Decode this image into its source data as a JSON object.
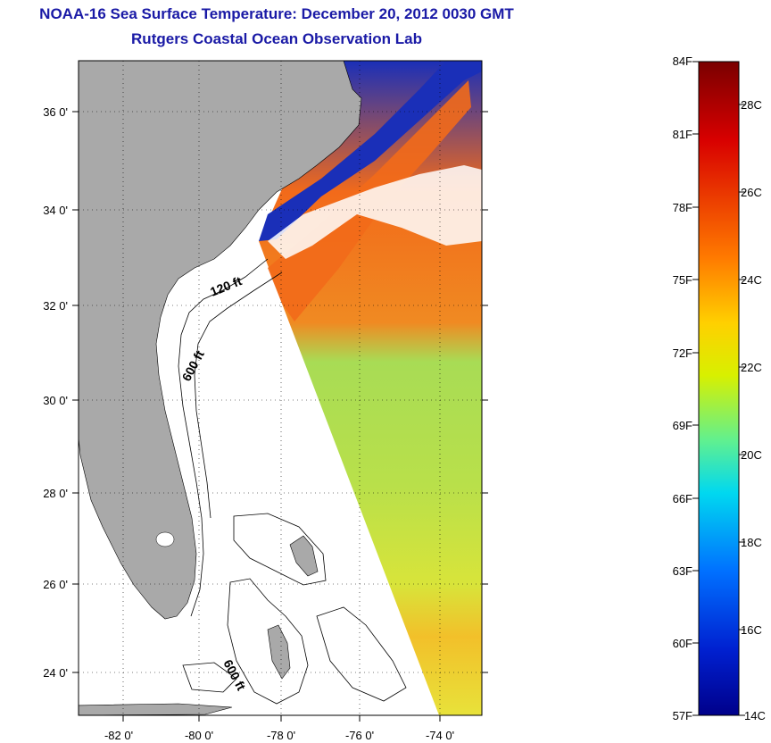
{
  "header": {
    "title": "NOAA-16 Sea Surface Temperature:  December 20, 2012 0030 GMT",
    "subtitle": "Rutgers Coastal Ocean Observation Lab"
  },
  "map": {
    "lon_labels": [
      "-82 0'",
      "-80 0'",
      "-78 0'",
      "-76 0'",
      "-74 0'"
    ],
    "lat_labels": [
      "36 0'",
      "34 0'",
      "32 0'",
      "30 0'",
      "28 0'",
      "26 0'",
      "24 0'"
    ],
    "contour_labels": [
      "120 ft",
      "600 ft",
      "600 ft"
    ],
    "colors": {
      "land": "#a9a9a9",
      "cloud_mask": "#ffffff",
      "cold_water": "#1a2fb8",
      "warm_water": "#f26a1a",
      "mid_water": "#9ad94c"
    }
  },
  "colorbar": {
    "fahrenheit_labels": [
      "84F",
      "81F",
      "78F",
      "75F",
      "72F",
      "69F",
      "66F",
      "63F",
      "60F",
      "57F"
    ],
    "celsius_labels": [
      "28C",
      "26C",
      "24C",
      "22C",
      "20C",
      "18C",
      "16C",
      "14C"
    ],
    "range_f": [
      57,
      84
    ],
    "range_c": [
      14,
      29
    ]
  }
}
